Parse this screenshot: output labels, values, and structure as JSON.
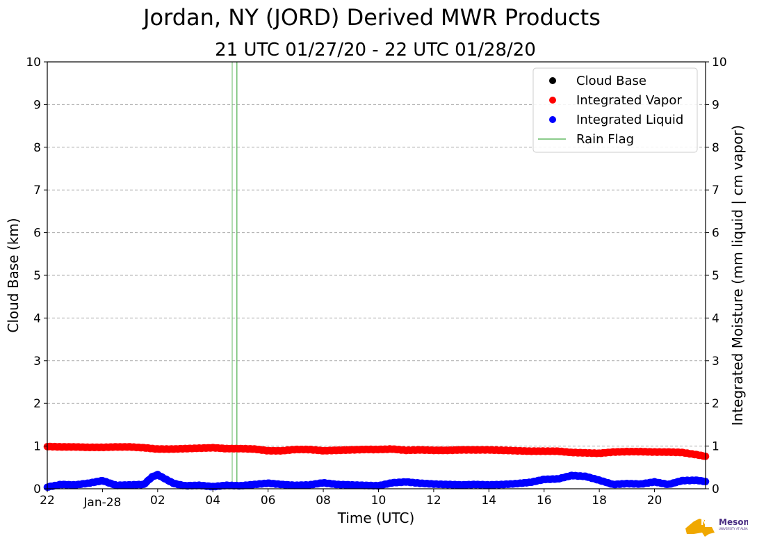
{
  "chart_data": {
    "type": "scatter",
    "title": "Jordan, NY (JORD) Derived MWR Products",
    "subtitle": "21 UTC 01/27/20 - 22 UTC 01/28/20",
    "xlabel": "Time (UTC)",
    "ylabel_left": "Cloud Base (km)",
    "ylabel_right": "Integrated Moisture (mm liquid | cm vapor)",
    "xlim": [
      22,
      45.85
    ],
    "ylim_left": [
      0,
      10
    ],
    "ylim_right": [
      0,
      10
    ],
    "x_ticks": [
      {
        "x": 22,
        "label": "22"
      },
      {
        "x": 24,
        "label": "Jan-28"
      },
      {
        "x": 26,
        "label": "02"
      },
      {
        "x": 28,
        "label": "04"
      },
      {
        "x": 30,
        "label": "06"
      },
      {
        "x": 32,
        "label": "08"
      },
      {
        "x": 34,
        "label": "10"
      },
      {
        "x": 36,
        "label": "12"
      },
      {
        "x": 38,
        "label": "14"
      },
      {
        "x": 40,
        "label": "16"
      },
      {
        "x": 42,
        "label": "18"
      },
      {
        "x": 44,
        "label": "20"
      }
    ],
    "y_ticks": [
      "0",
      "1",
      "2",
      "3",
      "4",
      "5",
      "6",
      "7",
      "8",
      "9",
      "10"
    ],
    "grid": "horizontal dashed",
    "legend_position": "top-right",
    "series": [
      {
        "name": "Cloud Base",
        "marker": "dot",
        "color": "#000000",
        "x": [],
        "y": []
      },
      {
        "name": "Integrated Vapor",
        "marker": "dot",
        "color": "#ff0000",
        "x": [
          22.0,
          22.5,
          23.0,
          23.5,
          24.0,
          24.5,
          25.0,
          25.5,
          26.0,
          26.5,
          27.0,
          27.5,
          28.0,
          28.5,
          29.0,
          29.5,
          30.0,
          30.5,
          31.0,
          31.5,
          32.0,
          32.5,
          33.0,
          33.5,
          34.0,
          34.5,
          35.0,
          35.5,
          36.0,
          36.5,
          37.0,
          37.5,
          38.0,
          38.5,
          39.0,
          39.5,
          40.0,
          40.5,
          41.0,
          41.5,
          42.0,
          42.5,
          43.0,
          43.5,
          44.0,
          44.5,
          45.0,
          45.5,
          45.85
        ],
        "y": [
          0.99,
          0.98,
          0.98,
          0.97,
          0.97,
          0.98,
          0.98,
          0.96,
          0.93,
          0.93,
          0.94,
          0.95,
          0.96,
          0.94,
          0.94,
          0.93,
          0.89,
          0.89,
          0.92,
          0.92,
          0.89,
          0.9,
          0.91,
          0.92,
          0.92,
          0.93,
          0.9,
          0.91,
          0.9,
          0.9,
          0.91,
          0.91,
          0.91,
          0.9,
          0.89,
          0.88,
          0.88,
          0.88,
          0.85,
          0.84,
          0.83,
          0.86,
          0.87,
          0.87,
          0.86,
          0.86,
          0.85,
          0.8,
          0.76
        ]
      },
      {
        "name": "Integrated Liquid",
        "marker": "dot",
        "color": "#0000ff",
        "x": [
          22.0,
          22.5,
          23.0,
          23.5,
          24.0,
          24.5,
          25.0,
          25.5,
          25.8,
          26.0,
          26.3,
          26.6,
          27.0,
          27.5,
          28.0,
          28.5,
          29.0,
          29.5,
          30.0,
          30.5,
          31.0,
          31.5,
          32.0,
          32.5,
          33.0,
          33.5,
          34.0,
          34.5,
          35.0,
          35.5,
          36.0,
          36.5,
          37.0,
          37.5,
          38.0,
          38.5,
          39.0,
          39.5,
          40.0,
          40.5,
          41.0,
          41.5,
          42.0,
          42.5,
          43.0,
          43.5,
          44.0,
          44.5,
          45.0,
          45.5,
          45.85
        ],
        "y": [
          0.04,
          0.1,
          0.09,
          0.13,
          0.19,
          0.08,
          0.09,
          0.1,
          0.28,
          0.33,
          0.22,
          0.12,
          0.07,
          0.08,
          0.05,
          0.08,
          0.07,
          0.1,
          0.13,
          0.1,
          0.08,
          0.09,
          0.14,
          0.1,
          0.09,
          0.08,
          0.07,
          0.14,
          0.16,
          0.13,
          0.11,
          0.1,
          0.09,
          0.1,
          0.09,
          0.1,
          0.12,
          0.15,
          0.22,
          0.23,
          0.31,
          0.29,
          0.2,
          0.1,
          0.12,
          0.11,
          0.16,
          0.1,
          0.19,
          0.2,
          0.17
        ]
      },
      {
        "name": "Rain Flag",
        "marker": "line",
        "color": "#66bb66",
        "x": [
          28.7,
          28.87
        ]
      }
    ]
  },
  "logo": {
    "text": "NYS Mesonet",
    "subtext": "UNIVERSITY AT ALBANY",
    "color_primary": "#f0a800",
    "color_secondary": "#4b2e83"
  }
}
